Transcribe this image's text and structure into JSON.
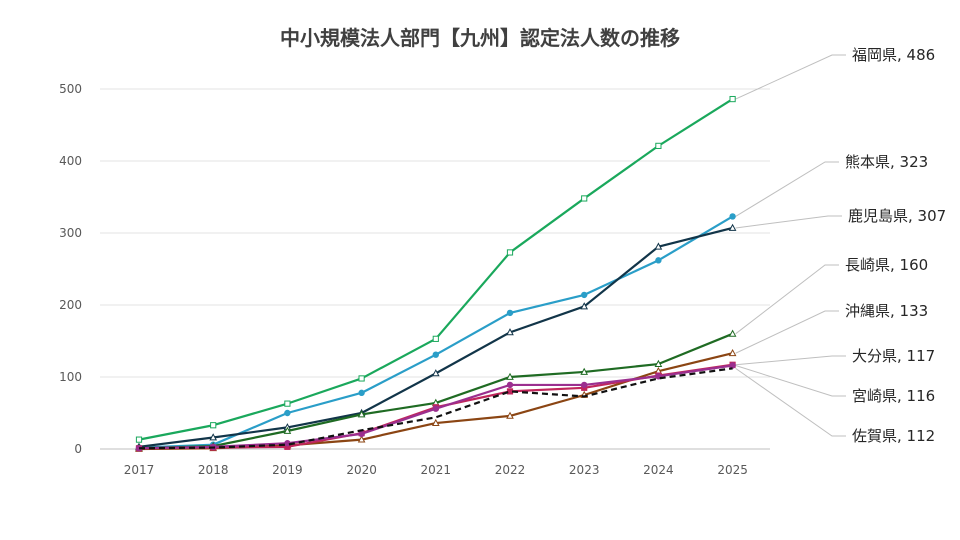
{
  "chart_data": {
    "type": "line",
    "title": "中小規模法人部門【九州】認定法人数の推移",
    "x": [
      2017,
      2018,
      2019,
      2020,
      2021,
      2022,
      2023,
      2024,
      2025
    ],
    "x_tick_labels": [
      "2017",
      "2018",
      "2019",
      "2020",
      "2021",
      "2022",
      "2023",
      "2024",
      "2025"
    ],
    "ylim": [
      0,
      500
    ],
    "y_ticks": [
      0,
      100,
      200,
      300,
      400,
      500
    ],
    "y_tick_labels": [
      "0",
      "100",
      "200",
      "300",
      "400",
      "500"
    ],
    "grid": true,
    "legend": "none",
    "series": [
      {
        "name": "福岡県",
        "label": "福岡県, 486",
        "color": "#1aa85c",
        "marker": "square-open",
        "dash": false,
        "values": [
          13,
          33,
          63,
          98,
          153,
          273,
          348,
          421,
          486
        ]
      },
      {
        "name": "熊本県",
        "label": "熊本県, 323",
        "color": "#2a9ec8",
        "marker": "circle",
        "dash": false,
        "values": [
          2,
          6,
          50,
          78,
          131,
          189,
          214,
          262,
          323
        ]
      },
      {
        "name": "鹿児島県",
        "label": "鹿児島県, 307",
        "color": "#123549",
        "marker": "triangle-open",
        "dash": false,
        "values": [
          3,
          16,
          30,
          50,
          105,
          162,
          198,
          281,
          307
        ]
      },
      {
        "name": "長崎県",
        "label": "長崎県, 160",
        "color": "#1f6b23",
        "marker": "triangle-open",
        "dash": false,
        "values": [
          1,
          4,
          25,
          48,
          64,
          100,
          107,
          118,
          160
        ]
      },
      {
        "name": "沖縄県",
        "label": "沖縄県, 133",
        "color": "#8b4513",
        "marker": "triangle-open",
        "dash": false,
        "values": [
          0,
          1,
          5,
          13,
          36,
          46,
          75,
          108,
          133
        ]
      },
      {
        "name": "大分県",
        "label": "大分県, 117",
        "color": "#c0265c",
        "marker": "square",
        "dash": false,
        "values": [
          1,
          2,
          3,
          22,
          58,
          80,
          85,
          102,
          117
        ]
      },
      {
        "name": "宮崎県",
        "label": "宮崎県, 116",
        "color": "#9b2f8f",
        "marker": "circle",
        "dash": false,
        "values": [
          1,
          3,
          8,
          21,
          56,
          89,
          89,
          101,
          116
        ]
      },
      {
        "name": "佐賀県",
        "label": "佐賀県, 112",
        "color": "#111111",
        "marker": "none",
        "dash": true,
        "values": [
          1,
          2,
          6,
          26,
          44,
          80,
          73,
          98,
          112
        ]
      }
    ]
  }
}
